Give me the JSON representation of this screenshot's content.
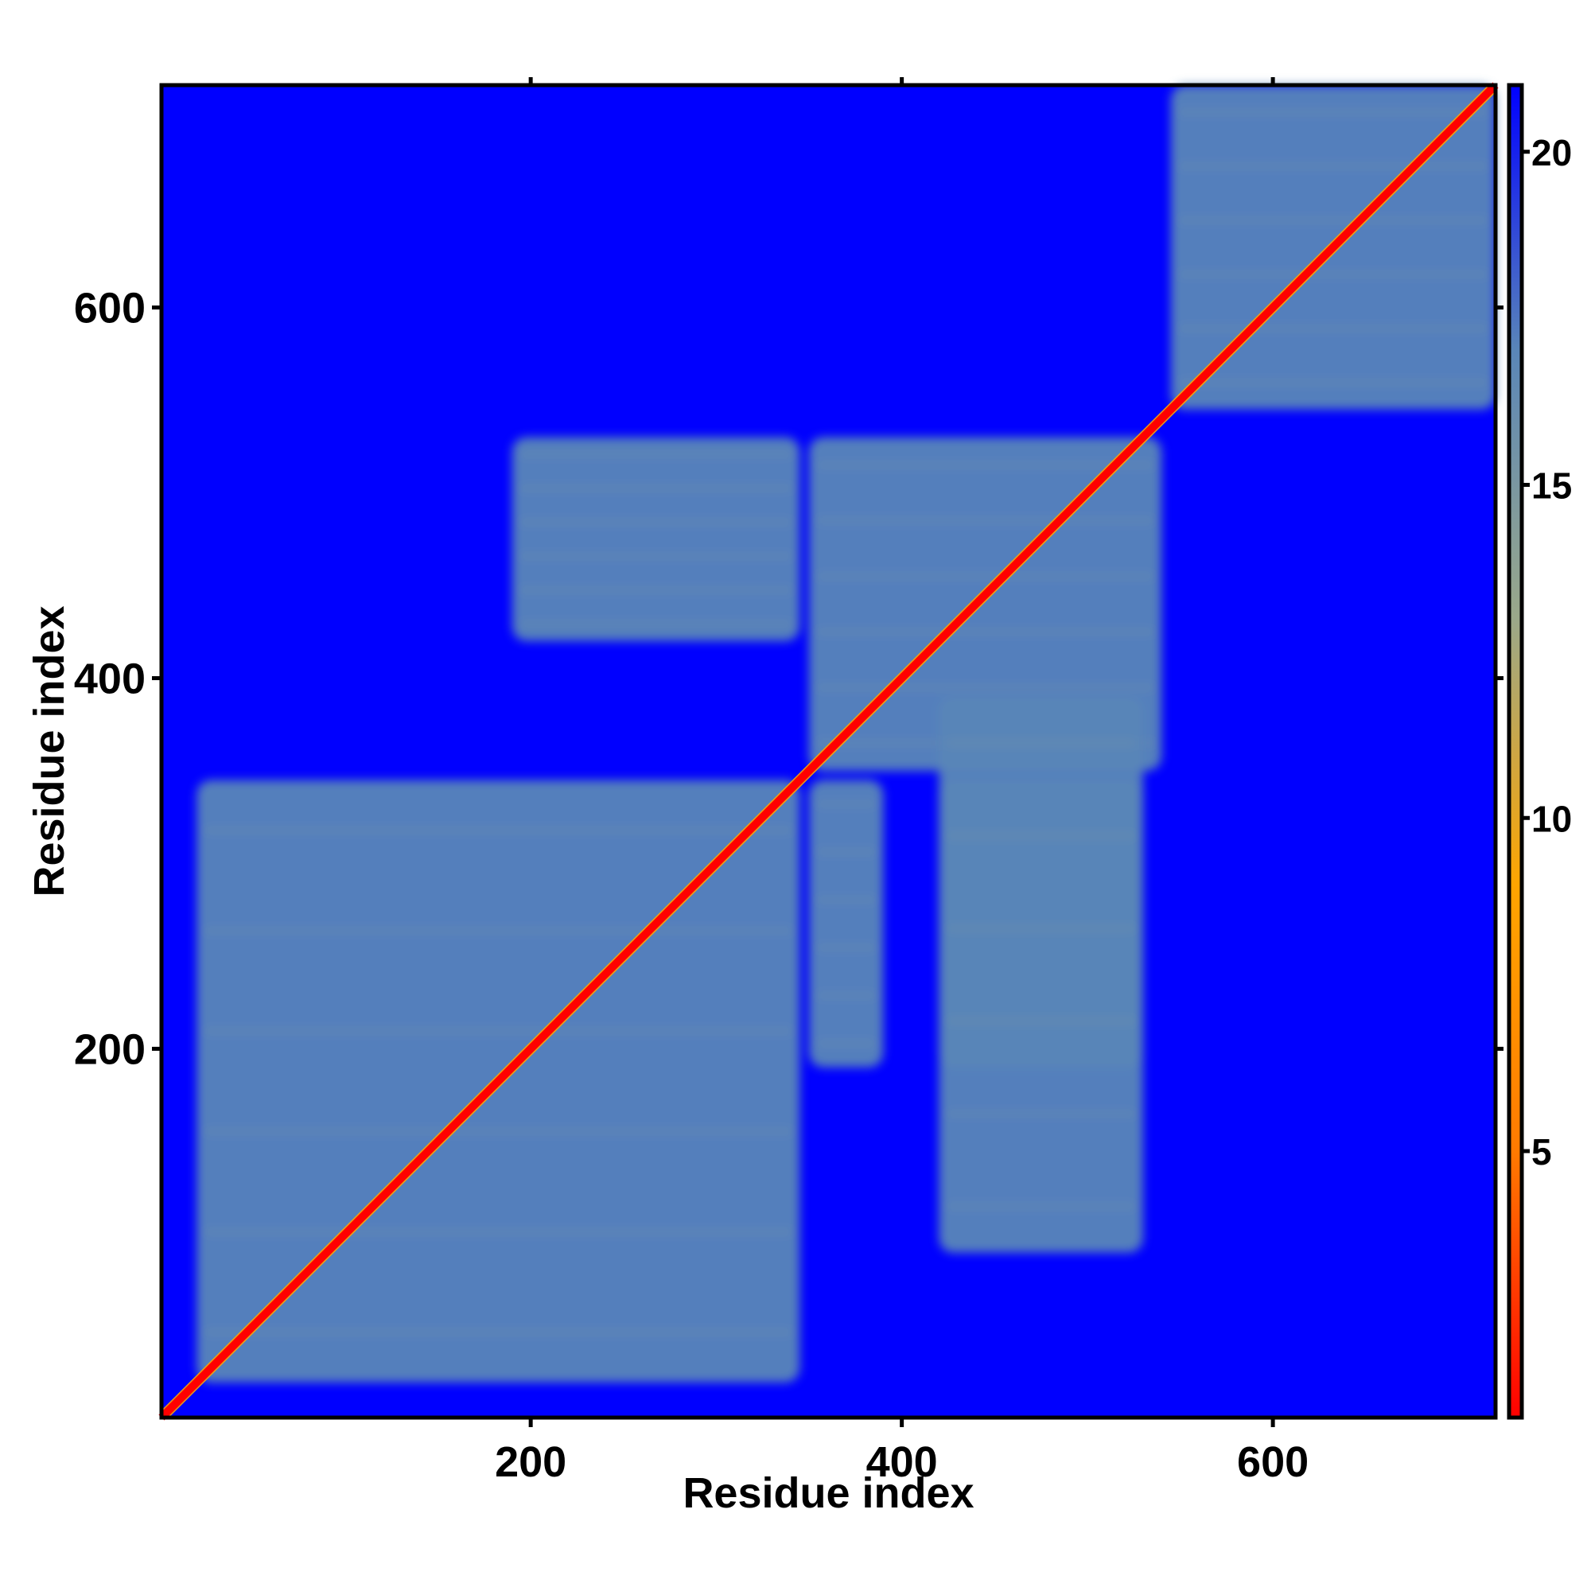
{
  "chart_data": {
    "type": "heatmap",
    "title": "",
    "xlabel": "Residue index",
    "ylabel": "Residue index",
    "xlim": [
      1,
      720
    ],
    "ylim": [
      1,
      720
    ],
    "xticks": [
      200,
      400,
      600
    ],
    "yticks": [
      200,
      400,
      600
    ],
    "colorbar": {
      "range": [
        1,
        21
      ],
      "ticks": [
        5,
        10,
        15,
        20
      ],
      "colors": [
        "#ff0000",
        "#ff7a00",
        "#ffa500",
        "#9aa88a",
        "#5a86b8",
        "#0000ff"
      ],
      "placement": "right"
    },
    "background_value": 21,
    "regions": [
      {
        "x": [
          20,
          345
        ],
        "y": [
          20,
          345
        ],
        "value": 17
      },
      {
        "x": [
          545,
          720
        ],
        "y": [
          545,
          720
        ],
        "value": 17
      },
      {
        "x": [
          350,
          540
        ],
        "y": [
          350,
          530
        ],
        "value": 17
      },
      {
        "x": [
          190,
          345
        ],
        "y": [
          420,
          530
        ],
        "value": 17
      },
      {
        "x": [
          420,
          530
        ],
        "y": [
          190,
          345
        ],
        "value": 17
      },
      {
        "x": [
          420,
          530
        ],
        "y": [
          90,
          390
        ],
        "value": 17
      },
      {
        "x": [
          350,
          390
        ],
        "y": [
          190,
          345
        ],
        "value": 17
      }
    ],
    "diagonal_band": {
      "width": 4,
      "value": 2
    },
    "grid": false,
    "legend": "colorbar-right"
  }
}
